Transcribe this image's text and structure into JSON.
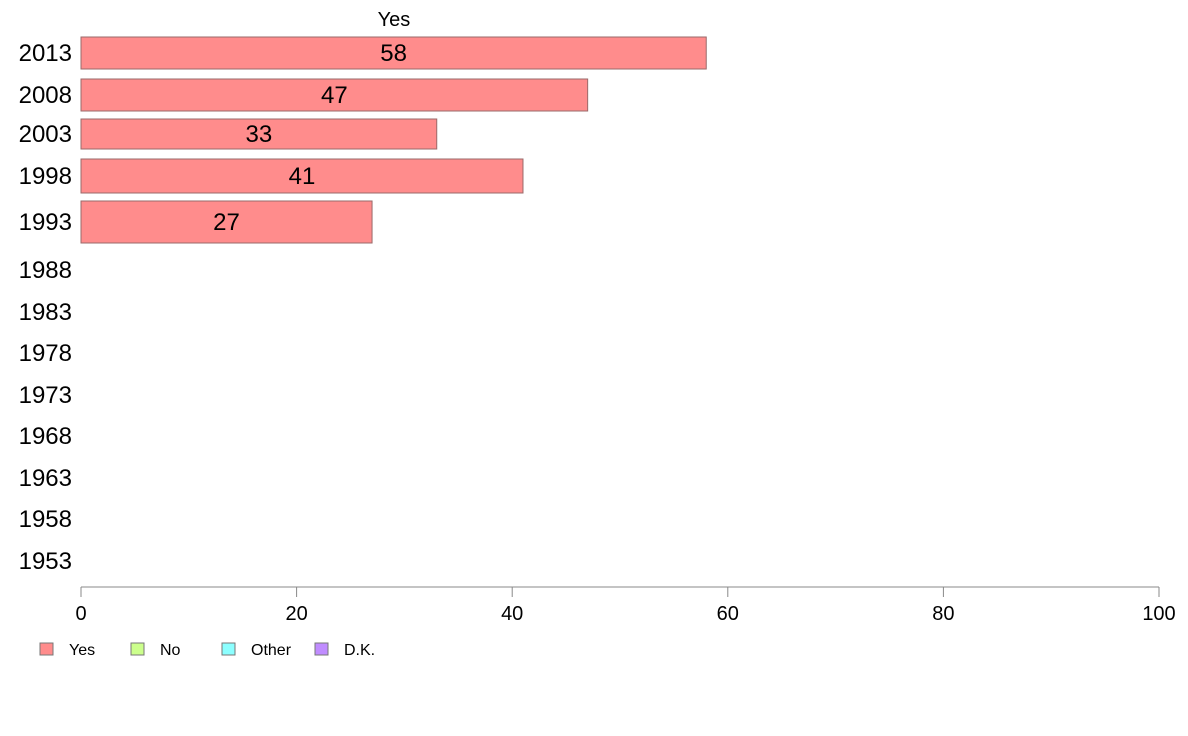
{
  "chart_data": {
    "type": "bar",
    "orientation": "horizontal",
    "title": "Yes",
    "categories": [
      "2013",
      "2008",
      "2003",
      "1998",
      "1993",
      "1988",
      "1983",
      "1978",
      "1973",
      "1968",
      "1963",
      "1958",
      "1953"
    ],
    "series": [
      {
        "name": "Yes",
        "color": "#ff8c8c",
        "values": [
          58,
          47,
          33,
          41,
          27,
          null,
          null,
          null,
          null,
          null,
          null,
          null,
          null
        ]
      }
    ],
    "data_labels": [
      "58",
      "47",
      "33",
      "41",
      "27"
    ],
    "xlim": [
      0,
      100
    ],
    "xticks": [
      0,
      20,
      40,
      60,
      80,
      100
    ],
    "xlabel": "",
    "ylabel": "",
    "grid": false,
    "legend": {
      "placement": "bottom-left",
      "items": [
        {
          "label": "Yes",
          "color": "#ff8c8c"
        },
        {
          "label": "No",
          "color": "#ccff8c"
        },
        {
          "label": "Other",
          "color": "#8cffff"
        },
        {
          "label": "D.K.",
          "color": "#c08cff"
        }
      ]
    }
  }
}
